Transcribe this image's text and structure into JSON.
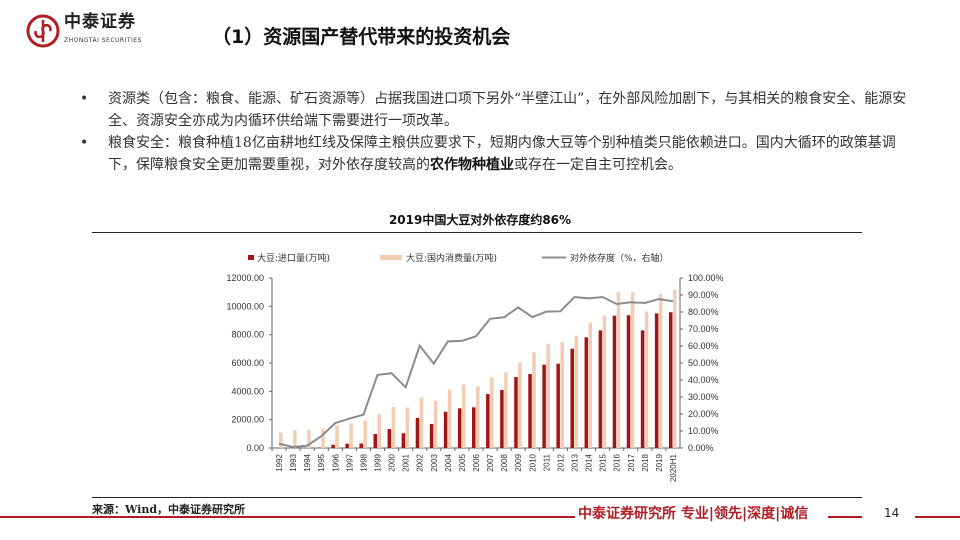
{
  "header": {
    "logo_name": "中泰证券",
    "logo_en": "ZHONGTAI SECURITIES",
    "title": "（1）资源国产替代带来的投资机会"
  },
  "bullets": [
    {
      "text": "资源类（包含：粮食、能源、矿石资源等）占据我国进口项下另外“半壁江山”，在外部风险加剧下，与其相关的粮食安全、能源安全、资源安全亦成为内循环供给端下需要进行一项改革。"
    },
    {
      "text_before": "粮食安全：粮食种植18亿亩耕地红线及保障主粮供应要求下，短期内像大豆等个别种植类只能依赖进口。国内大循环的政策基调下，保障粮食安全更加需要重视，对外依存度较高的",
      "bold": "农作物种植业",
      "text_after": "或存在一定自主可控机会。"
    }
  ],
  "chart_data": {
    "type": "bar",
    "title": "2019中国大豆对外依存度约86%",
    "categories": [
      "1992",
      "1993",
      "1994",
      "1995",
      "1996",
      "1997",
      "1998",
      "1999",
      "2000",
      "2001",
      "2002",
      "2003",
      "2004",
      "2005",
      "2006",
      "2007",
      "2008",
      "2009",
      "2010",
      "2011",
      "2012",
      "2013",
      "2014",
      "2015",
      "2016",
      "2017",
      "2018",
      "2019",
      "2020H1"
    ],
    "series": [
      {
        "name": "大豆:进口量(万吨)",
        "type": "bar",
        "axis": "left",
        "color": "#a31515",
        "values": [
          12,
          10,
          5,
          30,
          230,
          300,
          320,
          990,
          1340,
          1040,
          2120,
          1690,
          2560,
          2800,
          2870,
          3810,
          4100,
          5010,
          5220,
          5880,
          5950,
          7010,
          7810,
          8300,
          9340,
          9370,
          8300,
          9500,
          9580
        ]
      },
      {
        "name": "大豆:国内消费量(万吨)",
        "type": "bar",
        "axis": "left",
        "color": "#f2cdb3",
        "values": [
          1100,
          1250,
          1270,
          1390,
          1580,
          1740,
          1930,
          2380,
          2890,
          2850,
          3550,
          3340,
          4120,
          4490,
          4350,
          4990,
          5340,
          6050,
          6750,
          7360,
          7460,
          7930,
          8850,
          9340,
          11010,
          10990,
          9650,
          10870,
          11180
        ]
      },
      {
        "name": "对外依存度（%，右轴）",
        "type": "line",
        "axis": "right",
        "color": "#8c8c8c",
        "values": [
          2.5,
          0.6,
          1.4,
          6.9,
          14.7,
          17.3,
          19.6,
          43,
          44,
          35.7,
          60.2,
          49.6,
          62.7,
          63,
          65.7,
          76,
          76.9,
          82.7,
          77,
          80.2,
          80.4,
          88.8,
          88,
          88.8,
          84.7,
          85.7,
          85.3,
          87.6,
          86.3
        ]
      }
    ],
    "left_axis": {
      "range": [
        0,
        12000
      ],
      "ticks": [
        "0.00",
        "2000.00",
        "4000.00",
        "6000.00",
        "8000.00",
        "10000.00",
        "12000.00"
      ]
    },
    "right_axis": {
      "range": [
        0,
        100
      ],
      "ticks": [
        "0.00%",
        "10.00%",
        "20.00%",
        "30.00%",
        "40.00%",
        "50.00%",
        "60.00%",
        "70.00%",
        "80.00%",
        "90.00%",
        "100.00%"
      ]
    },
    "legend_position": "top",
    "grid": false
  },
  "footer": {
    "source": "来源：Wind，中泰证券研究所",
    "slogan": "中泰证券研究所 专业|领先|深度|诚信",
    "page_number": "14"
  },
  "colors": {
    "brand_red": "#b01e23"
  }
}
